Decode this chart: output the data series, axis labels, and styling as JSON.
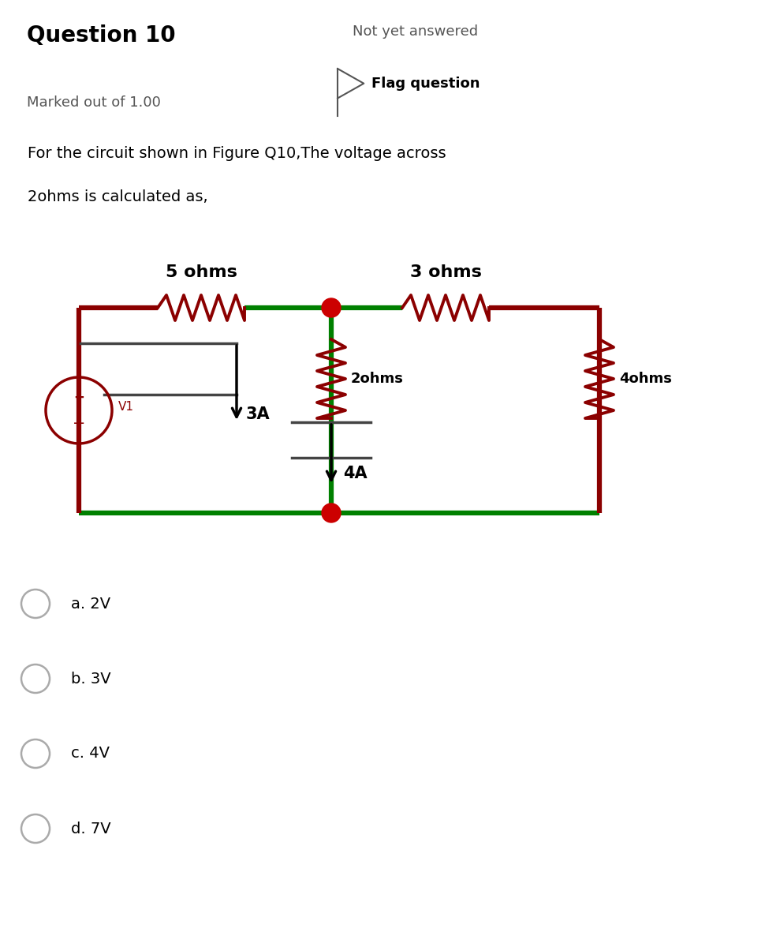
{
  "title": "Question 10",
  "not_yet_answered": "Not yet answered",
  "marked_out": "Marked out of 1.00",
  "flag_question": "Flag question",
  "question_text_line1": "For the circuit shown in Figure Q10,The voltage across",
  "question_text_line2": "2ohms is calculated as,",
  "options": [
    "a. 2V",
    "b. 3V",
    "c. 4V",
    "d. 7V"
  ],
  "header_bg": "#e8e8e8",
  "body_bg": "#ffffff",
  "wire_green": "#008000",
  "wire_dark": "#8B0000",
  "resistor_color": "#8B0000",
  "node_color": "#cc0000",
  "text_color": "#000000",
  "gray_text": "#555555",
  "fig_width": 9.89,
  "fig_height": 12.0
}
